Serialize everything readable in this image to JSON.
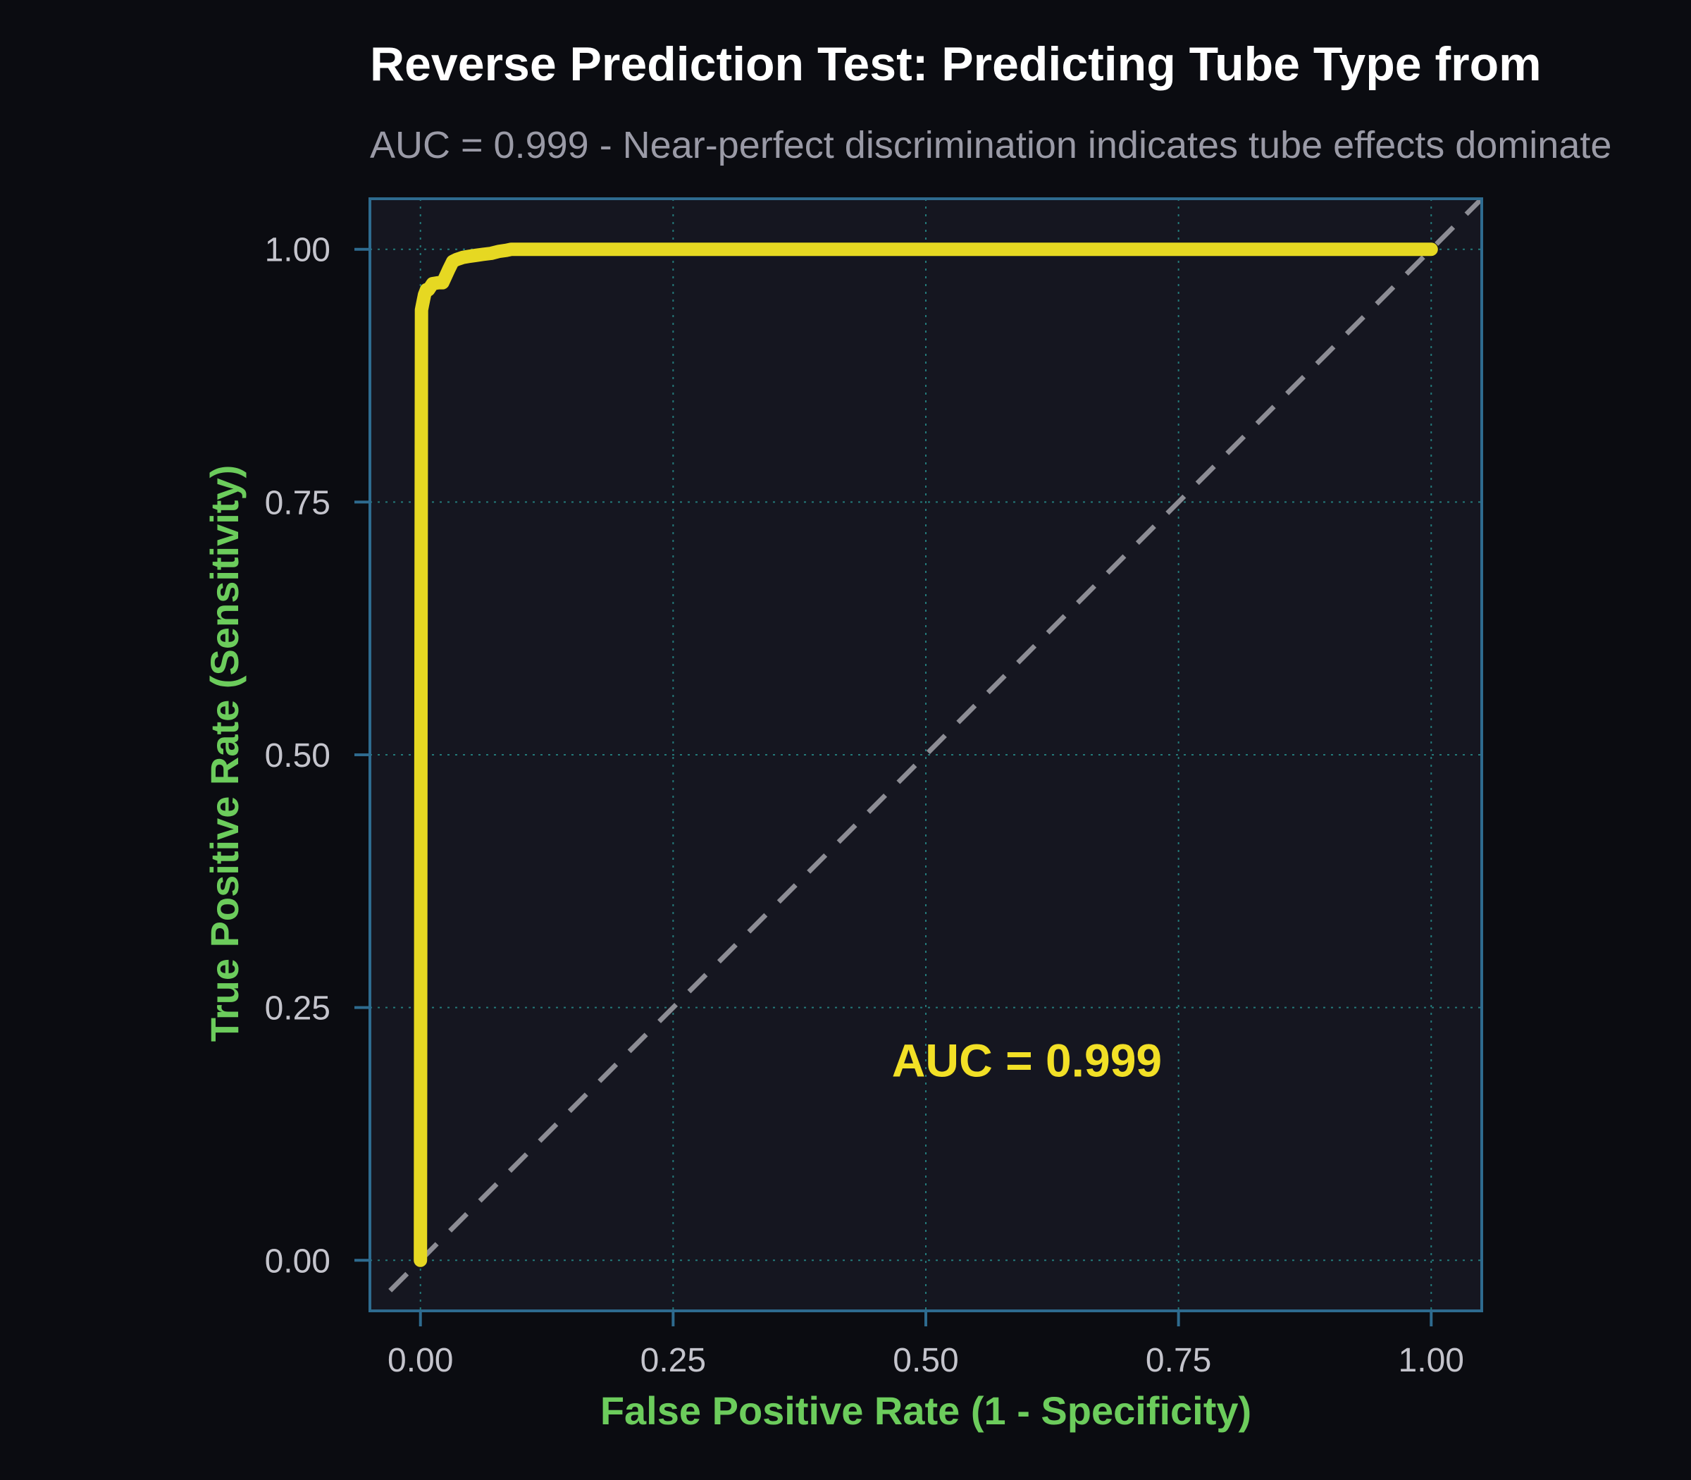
{
  "colors": {
    "background": "#0b0c11",
    "panel": "#151620",
    "panel_border": "#2e6b8f",
    "grid": "#237a7a",
    "title": "#ffffff",
    "subtitle": "#9a9aa6",
    "tick_label": "#c4c4cc",
    "axis_title": "#6ccc5c",
    "roc_curve": "#e6d822",
    "reference_line": "#8c8c94",
    "annotation": "#f2e026"
  },
  "chart_data": {
    "type": "line",
    "title": "Reverse Prediction Test: Predicting Tube Type from",
    "subtitle": "AUC = 0.999 - Near-perfect discrimination indicates tube effects dominate",
    "xlabel": "False Positive Rate (1 - Specificity)",
    "ylabel": "True Positive Rate (Sensitivity)",
    "xlim": [
      -0.05,
      1.05
    ],
    "ylim": [
      -0.05,
      1.05
    ],
    "x_ticks": [
      0,
      0.25,
      0.5,
      0.75,
      1
    ],
    "x_tick_labels": [
      "0.00",
      "0.25",
      "0.50",
      "0.75",
      "1.00"
    ],
    "y_ticks": [
      0,
      0.25,
      0.5,
      0.75,
      1
    ],
    "y_tick_labels": [
      "0.00",
      "0.25",
      "0.50",
      "0.75",
      "1.00"
    ],
    "grid": true,
    "annotation": {
      "text": "AUC = 0.999",
      "x": 0.6,
      "y": 0.197
    },
    "series": [
      {
        "kind": "roc",
        "x": [
          0,
          0.0005,
          0.001,
          0.002,
          0.004,
          0.006,
          0.008,
          0.012,
          0.018,
          0.022,
          0.028,
          0.032,
          0.036,
          0.042,
          0.048,
          0.055,
          0.062,
          0.07,
          0.078,
          0.085,
          0.09,
          0.2,
          0.4,
          0.6,
          0.8,
          1.0
        ],
        "y": [
          0,
          0.5,
          0.94,
          0.945,
          0.955,
          0.96,
          0.96,
          0.966,
          0.967,
          0.967,
          0.98,
          0.988,
          0.99,
          0.992,
          0.993,
          0.994,
          0.995,
          0.996,
          0.998,
          0.999,
          1.0,
          1.0,
          1.0,
          1.0,
          1.0,
          1.0
        ]
      },
      {
        "kind": "reference",
        "x": [
          -0.03,
          1.05
        ],
        "y": [
          -0.03,
          1.05
        ]
      }
    ]
  }
}
